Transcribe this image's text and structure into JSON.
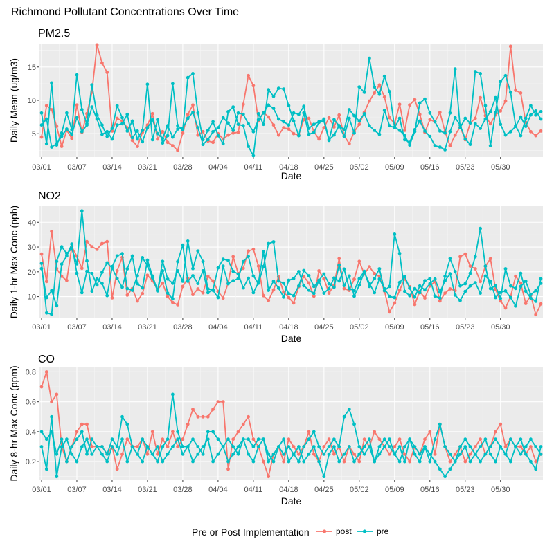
{
  "figure_title": "Richmond Pollutant Concentrations Over Time",
  "legend": {
    "title": "Pre or Post Implementation",
    "entries": [
      {
        "name": "post",
        "color": "#f8766d"
      },
      {
        "name": "pre",
        "color": "#00bfc4"
      }
    ]
  },
  "colors": {
    "post": "#f8766d",
    "pre": "#00bfc4",
    "panel_bg": "#ebebeb",
    "grid": "#ffffff"
  },
  "chart_data": [
    {
      "type": "line",
      "title": "PM2.5",
      "xlabel": "Date",
      "ylabel": "Daily Mean (ug/m3)",
      "x_ticks": [
        "03/01",
        "03/07",
        "03/14",
        "03/21",
        "03/28",
        "04/04",
        "04/11",
        "04/18",
        "04/25",
        "05/02",
        "05/09",
        "05/16",
        "05/23",
        "05/30"
      ],
      "y_ticks": [
        5,
        10,
        15
      ],
      "ylim": [
        1.5,
        18.5
      ],
      "grid": true,
      "series": [
        {
          "name": "post",
          "values": [
            4.5,
            9.2,
            8.6,
            6.1,
            3.1,
            5.5,
            4.3,
            9.3,
            5.2,
            8.0,
            11.2,
            18.3,
            15.6,
            14.2,
            5.4,
            7.3,
            6.9,
            5.9,
            4.0,
            3.1,
            5.2,
            6.3,
            8.0,
            4.2,
            5.3,
            3.7,
            3.2,
            2.5,
            5.1,
            7.9,
            9.3,
            4.8,
            5.3,
            3.9,
            3.7,
            5.0,
            4.2,
            4.8,
            5.1,
            5.2,
            9.4,
            13.7,
            12.2,
            6.9,
            8.2,
            7.5,
            6.3,
            4.8,
            5.9,
            5.7,
            5.0,
            4.8,
            7.1,
            7.3,
            5.3,
            4.2,
            5.9,
            7.4,
            6.0,
            7.8,
            4.7,
            3.5,
            5.3,
            6.4,
            8.2,
            9.9,
            11.1,
            12.3,
            10.5,
            7.4,
            6.5,
            9.4,
            5.5,
            9.3,
            10.1,
            7.9,
            5.2,
            7.1,
            6.8,
            8.2,
            5.3,
            3.2,
            4.8,
            6.0,
            4.1,
            6.6,
            7.3,
            10.4,
            7.7,
            6.5,
            7.8,
            8.4,
            9.9,
            18.1,
            11.5,
            11.1,
            6.7,
            5.3,
            4.7,
            5.4
          ]
        },
        {
          "name": "pre",
          "values": [
            8.1,
            3.5,
            12.6,
            3.3,
            5.1,
            8.1,
            5.6,
            13.8,
            8.6,
            6.5,
            12.3,
            7.8,
            6.3,
            4.6,
            5.8,
            9.2,
            7.4,
            5.4,
            6.9,
            4.2,
            5.5,
            12.4,
            4.1,
            7.1,
            3.6,
            4.7,
            12.5,
            6.2,
            5.6,
            13.4,
            14.0,
            8.1,
            4.1,
            5.5,
            6.8,
            4.7,
            3.5,
            8.3,
            9.0,
            6.4,
            6.2,
            3.1,
            1.7,
            8.0,
            6.4,
            11.6,
            10.6,
            11.8,
            11.7,
            9.2,
            6.9,
            4.7,
            8.1,
            4.9,
            5.2,
            6.7,
            6.9,
            4.0,
            7.1,
            6.2,
            4.6,
            7.3,
            5.1,
            12.0,
            11.2,
            16.3,
            12.0,
            10.9,
            13.6,
            11.3,
            6.0,
            5.5,
            4.7,
            3.3,
            5.3,
            9.6,
            10.2,
            8.1,
            6.8,
            5.4,
            5.1,
            8.1,
            14.7,
            5.9,
            7.3,
            6.6,
            14.3,
            14.0,
            9.2,
            3.2,
            8.2,
            12.8,
            13.7,
            11.2,
            6.2,
            4.7,
            7.3,
            9.2,
            7.8,
            8.3
          ]
        },
        {
          "name": "pre",
          "values": [
            6.3,
            7.2,
            3.0,
            3.5,
            4.6,
            5.7,
            4.9,
            7.4,
            5.3,
            6.3,
            9.0,
            7.2,
            4.9,
            5.3,
            4.2,
            6.3,
            6.5,
            7.9,
            4.4,
            5.4,
            3.8,
            5.9,
            7.1,
            5.0,
            4.3,
            6.2,
            4.5,
            5.7,
            5.8,
            7.3,
            8.2,
            5.9,
            3.4,
            4.1,
            5.3,
            5.9,
            7.4,
            6.6,
            5.5,
            8.1,
            7.9,
            6.5,
            5.3,
            7.1,
            8.1,
            9.3,
            8.8,
            7.2,
            6.8,
            6.3,
            8.1,
            7.9,
            9.1,
            5.8,
            6.4,
            6.8,
            7.2,
            4.1,
            4.8,
            6.2,
            5.6,
            8.6,
            7.7,
            6.9,
            8.0,
            6.2,
            5.5,
            4.9,
            8.5,
            6.2,
            5.9,
            7.3,
            4.1,
            3.7,
            5.6,
            6.9,
            5.4,
            4.6,
            3.2,
            3.0,
            2.6,
            5.3,
            7.4,
            6.3,
            4.2,
            3.4,
            6.5,
            5.8,
            7.2,
            8.3,
            10.4,
            6.4,
            4.8,
            5.3,
            6.1,
            7.5,
            6.1,
            7.8,
            8.4,
            7.2
          ]
        }
      ]
    },
    {
      "type": "line",
      "title": "NO2",
      "xlabel": "Date",
      "ylabel": "Daily 1-hr Max Conc (ppb)",
      "x_ticks": [
        "03/01",
        "03/07",
        "03/14",
        "03/21",
        "03/28",
        "04/04",
        "04/11",
        "04/18",
        "04/25",
        "05/02",
        "05/09",
        "05/16",
        "05/23",
        "05/30"
      ],
      "y_ticks": [
        10,
        20,
        30,
        40
      ],
      "ylim": [
        1.5,
        46.5
      ],
      "grid": true,
      "series": [
        {
          "name": "post",
          "values": [
            27.2,
            16.1,
            36.3,
            21.3,
            18.2,
            16.5,
            30.1,
            26.3,
            21.4,
            32.2,
            30.1,
            29.1,
            31.4,
            32.2,
            9.5,
            20.4,
            25.8,
            10.6,
            13.2,
            8.2,
            11.2,
            18.6,
            16.4,
            12.8,
            15.4,
            10.0,
            7.6,
            6.7,
            14.1,
            17.4,
            10.8,
            13.1,
            11.5,
            18.2,
            16.3,
            12.1,
            9.4,
            15.5,
            26.1,
            19.3,
            21.4,
            28.4,
            29.1,
            22.3,
            10.4,
            8.4,
            12.7,
            18.0,
            11.8,
            9.6,
            7.4,
            14.0,
            18.1,
            15.5,
            10.2,
            20.4,
            17.2,
            11.4,
            14.6,
            25.3,
            13.2,
            12.5,
            17.0,
            24.2,
            19.1,
            22.0,
            19.3,
            18.1,
            12.2,
            3.8,
            7.4,
            12.6,
            17.1,
            14.0,
            6.8,
            12.1,
            9.4,
            14.3,
            16.0,
            8.2,
            11.4,
            13.1,
            12.4,
            26.1,
            27.2,
            22.3,
            21.2,
            16.1,
            22.2,
            25.3,
            13.0,
            8.2,
            5.4,
            10.0,
            18.2,
            15.4,
            7.2,
            10.5,
            2.7,
            7.0
          ]
        },
        {
          "name": "pre",
          "values": [
            23.4,
            3.4,
            2.8,
            24.2,
            30.1,
            27.4,
            29.3,
            23.2,
            44.6,
            24.4,
            12.2,
            17.1,
            15.3,
            10.4,
            22.1,
            26.4,
            27.3,
            13.2,
            12.5,
            18.4,
            25.7,
            22.4,
            17.6,
            12.3,
            24.2,
            17.1,
            15.4,
            20.4,
            16.2,
            32.4,
            21.3,
            28.4,
            24.2,
            13.1,
            12.5,
            9.6,
            22.3,
            15.2,
            16.4,
            17.3,
            24.1,
            26.2,
            18.3,
            15.4,
            22.1,
            31.4,
            32.1,
            16.3,
            15.4,
            11.2,
            10.4,
            14.3,
            20.5,
            18.4,
            14.1,
            16.3,
            11.4,
            13.2,
            17.5,
            16.3,
            21.1,
            13.2,
            12.4,
            17.2,
            20.2,
            14.1,
            17.3,
            21.2,
            12.4,
            14.1,
            35.2,
            27.4,
            12.1,
            10.4,
            13.2,
            11.6,
            16.4,
            17.3,
            10.2,
            9.4,
            18.2,
            25.3,
            20.1,
            14.3,
            15.2,
            19.4,
            26.1,
            37.5,
            22.3,
            13.2,
            14.4,
            9.3,
            21.2,
            14.3,
            13.3,
            19.4,
            12.2,
            9.4,
            8.1,
            17.2
          ]
        },
        {
          "name": "pre",
          "values": [
            21.3,
            9.6,
            12.4,
            6.3,
            23.1,
            26.4,
            31.2,
            19.4,
            11.6,
            20.2,
            19.3,
            14.7,
            19.8,
            23.6,
            21.5,
            17.3,
            13.8,
            21.2,
            26.4,
            15.2,
            13.5,
            24.7,
            18.3,
            12.6,
            20.4,
            11.4,
            9.1,
            24.1,
            30.8,
            16.2,
            18.4,
            15.3,
            20.4,
            11.6,
            12.7,
            21.6,
            25.1,
            24.6,
            20.2,
            19.1,
            13.5,
            17.4,
            11.6,
            15.7,
            28.1,
            12.5,
            16.2,
            13.4,
            9.8,
            16.6,
            17.3,
            20.1,
            14.4,
            12.6,
            11.3,
            16.6,
            19.1,
            15.2,
            13.8,
            22.7,
            14.5,
            18.3,
            10.2,
            14.6,
            19.9,
            15.3,
            11.6,
            17.1,
            13.2,
            10.1,
            9.6,
            15.7,
            18.1,
            13.4,
            9.8,
            14.3,
            12.7,
            15.2,
            17.1,
            11.8,
            16.4,
            19.2,
            10.6,
            8.4,
            12.1,
            14.3,
            15.6,
            11.4,
            18.3,
            16.2,
            9.6,
            11.7,
            12.3,
            9.6,
            6.2,
            14.1,
            16.2,
            10.8,
            12.4,
            15.4
          ]
        }
      ]
    },
    {
      "type": "line",
      "title": "CO",
      "xlabel": "Date",
      "ylabel": "Daily 8-hr Max Conc (ppm)",
      "x_ticks": [
        "03/01",
        "03/07",
        "03/14",
        "03/21",
        "03/28",
        "04/04",
        "04/11",
        "04/18",
        "04/25",
        "05/02",
        "05/09",
        "05/16",
        "05/23",
        "05/30"
      ],
      "y_ticks": [
        0.2,
        0.4,
        0.6,
        0.8
      ],
      "y_tick_labels": [
        "0.2",
        "0.4",
        "0.6",
        "0.8"
      ],
      "ylim": [
        0.08,
        0.83
      ],
      "grid": true,
      "series": [
        {
          "name": "post",
          "values": [
            0.7,
            0.8,
            0.6,
            0.65,
            0.3,
            0.2,
            0.3,
            0.4,
            0.45,
            0.45,
            0.3,
            0.3,
            0.3,
            0.25,
            0.3,
            0.15,
            0.25,
            0.35,
            0.3,
            0.3,
            0.35,
            0.25,
            0.4,
            0.25,
            0.35,
            0.3,
            0.4,
            0.3,
            0.35,
            0.45,
            0.55,
            0.5,
            0.5,
            0.5,
            0.55,
            0.6,
            0.6,
            0.15,
            0.35,
            0.4,
            0.45,
            0.5,
            0.35,
            0.3,
            0.2,
            0.1,
            0.25,
            0.3,
            0.2,
            0.35,
            0.3,
            0.25,
            0.3,
            0.4,
            0.25,
            0.2,
            0.3,
            0.35,
            0.25,
            0.3,
            0.2,
            0.3,
            0.25,
            0.2,
            0.35,
            0.3,
            0.4,
            0.35,
            0.3,
            0.25,
            0.3,
            0.35,
            0.25,
            0.2,
            0.3,
            0.25,
            0.35,
            0.4,
            0.25,
            0.45,
            0.3,
            0.2,
            0.25,
            0.3,
            0.2,
            0.25,
            0.3,
            0.35,
            0.25,
            0.3,
            0.4,
            0.45,
            0.3,
            0.35,
            0.3,
            0.3,
            0.25,
            0.3,
            0.2,
            0.25
          ]
        },
        {
          "name": "pre",
          "values": [
            0.4,
            0.35,
            0.4,
            0.25,
            0.35,
            0.2,
            0.3,
            0.35,
            0.4,
            0.25,
            0.35,
            0.3,
            0.3,
            0.25,
            0.35,
            0.3,
            0.5,
            0.45,
            0.3,
            0.25,
            0.35,
            0.3,
            0.25,
            0.2,
            0.3,
            0.35,
            0.65,
            0.4,
            0.3,
            0.3,
            0.35,
            0.3,
            0.25,
            0.4,
            0.4,
            0.35,
            0.3,
            0.35,
            0.3,
            0.25,
            0.35,
            0.35,
            0.3,
            0.35,
            0.35,
            0.25,
            0.2,
            0.3,
            0.25,
            0.3,
            0.25,
            0.2,
            0.3,
            0.35,
            0.4,
            0.3,
            0.25,
            0.3,
            0.35,
            0.3,
            0.5,
            0.55,
            0.45,
            0.3,
            0.25,
            0.3,
            0.2,
            0.3,
            0.35,
            0.3,
            0.25,
            0.3,
            0.2,
            0.35,
            0.3,
            0.25,
            0.3,
            0.2,
            0.35,
            0.45,
            0.3,
            0.25,
            0.2,
            0.3,
            0.35,
            0.3,
            0.25,
            0.2,
            0.25,
            0.3,
            0.35,
            0.3,
            0.25,
            0.35,
            0.3,
            0.25,
            0.3,
            0.35,
            0.3,
            0.25
          ]
        },
        {
          "name": "pre",
          "values": [
            0.3,
            0.15,
            0.5,
            0.1,
            0.3,
            0.35,
            0.25,
            0.2,
            0.3,
            0.35,
            0.25,
            0.3,
            0.25,
            0.2,
            0.3,
            0.25,
            0.35,
            0.2,
            0.3,
            0.25,
            0.2,
            0.3,
            0.25,
            0.3,
            0.2,
            0.25,
            0.3,
            0.35,
            0.25,
            0.3,
            0.2,
            0.25,
            0.3,
            0.35,
            0.2,
            0.25,
            0.3,
            0.2,
            0.25,
            0.3,
            0.35,
            0.25,
            0.2,
            0.3,
            0.35,
            0.2,
            0.25,
            0.3,
            0.35,
            0.2,
            0.25,
            0.3,
            0.2,
            0.25,
            0.3,
            0.2,
            0.1,
            0.25,
            0.3,
            0.2,
            0.25,
            0.3,
            0.2,
            0.25,
            0.3,
            0.35,
            0.2,
            0.25,
            0.3,
            0.35,
            0.25,
            0.2,
            0.3,
            0.35,
            0.25,
            0.2,
            0.3,
            0.25,
            0.2,
            0.15,
            0.1,
            0.15,
            0.2,
            0.25,
            0.3,
            0.2,
            0.25,
            0.3,
            0.35,
            0.25,
            0.2,
            0.3,
            0.25,
            0.2,
            0.3,
            0.35,
            0.25,
            0.2,
            0.15,
            0.3
          ]
        }
      ]
    }
  ]
}
